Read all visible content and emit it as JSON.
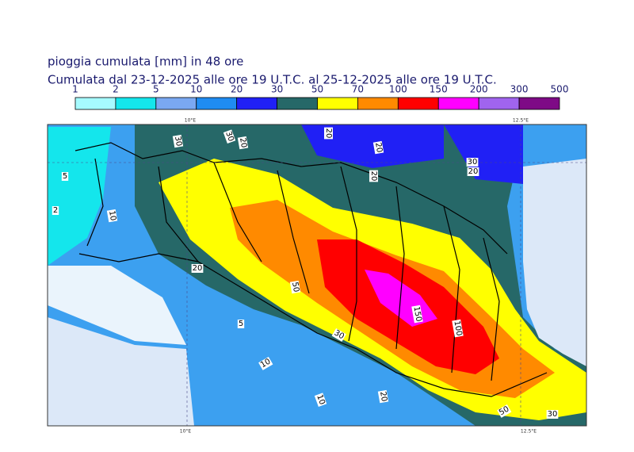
{
  "header": {
    "title": "pioggia cumulata [mm] in 48 ore",
    "subtitle": "Cumulata dal 23-12-2025 alle ore 19 U.T.C. al 25-12-2025 alle ore 19 U.T.C."
  },
  "colorbar": {
    "levels": [
      1,
      2,
      5,
      10,
      20,
      30,
      50,
      70,
      100,
      150,
      200,
      300,
      500
    ],
    "colors": [
      "#a6fbff",
      "#14e6ec",
      "#7aa8f2",
      "#1f8cf2",
      "#2020f5",
      "#266868",
      "#ffff00",
      "#ff8a00",
      "#ff0000",
      "#ff00ff",
      "#a064ee",
      "#7e0a86"
    ]
  },
  "map": {
    "lon_labels": [
      "10°E",
      "12.5°E"
    ],
    "contour_labels": [
      30,
      30,
      20,
      20,
      20,
      20,
      30,
      5,
      2,
      10,
      20,
      50,
      10,
      5,
      10,
      20,
      30,
      20,
      150,
      100,
      50,
      30
    ]
  }
}
